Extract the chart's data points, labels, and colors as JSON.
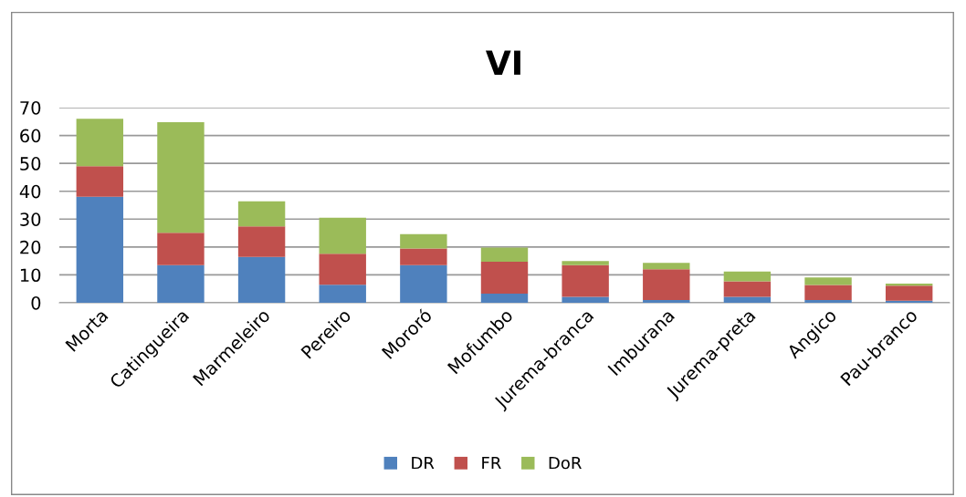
{
  "chart_data": {
    "type": "bar",
    "title": "VI",
    "stacked": true,
    "categories": [
      "Morta",
      "Catingueira",
      "Marmeleiro",
      "Pereiro",
      "Mororó",
      "Mofumbo",
      "Jurema-branca",
      "Imburana",
      "Jurema-preta",
      "Angico",
      "Pau-branco"
    ],
    "series": [
      {
        "name": "DR",
        "color": "#4f81bd",
        "values": [
          38,
          13.5,
          16.4,
          6.5,
          13.5,
          3.3,
          2.1,
          1,
          2.1,
          1,
          0.7
        ]
      },
      {
        "name": "FR",
        "color": "#c0504d",
        "values": [
          11,
          11.6,
          11,
          11.1,
          6,
          11.4,
          11.4,
          11,
          5.6,
          5.4,
          5.4
        ]
      },
      {
        "name": "DoR",
        "color": "#9bbb59",
        "values": [
          17,
          39.7,
          9,
          12.9,
          5.1,
          5.1,
          1.5,
          2.3,
          3.5,
          2.7,
          0.8
        ]
      }
    ],
    "ylim": [
      0,
      70
    ],
    "yticks": [
      0,
      10,
      20,
      30,
      40,
      50,
      60,
      70
    ],
    "grid": "y",
    "legend": "bottom"
  }
}
